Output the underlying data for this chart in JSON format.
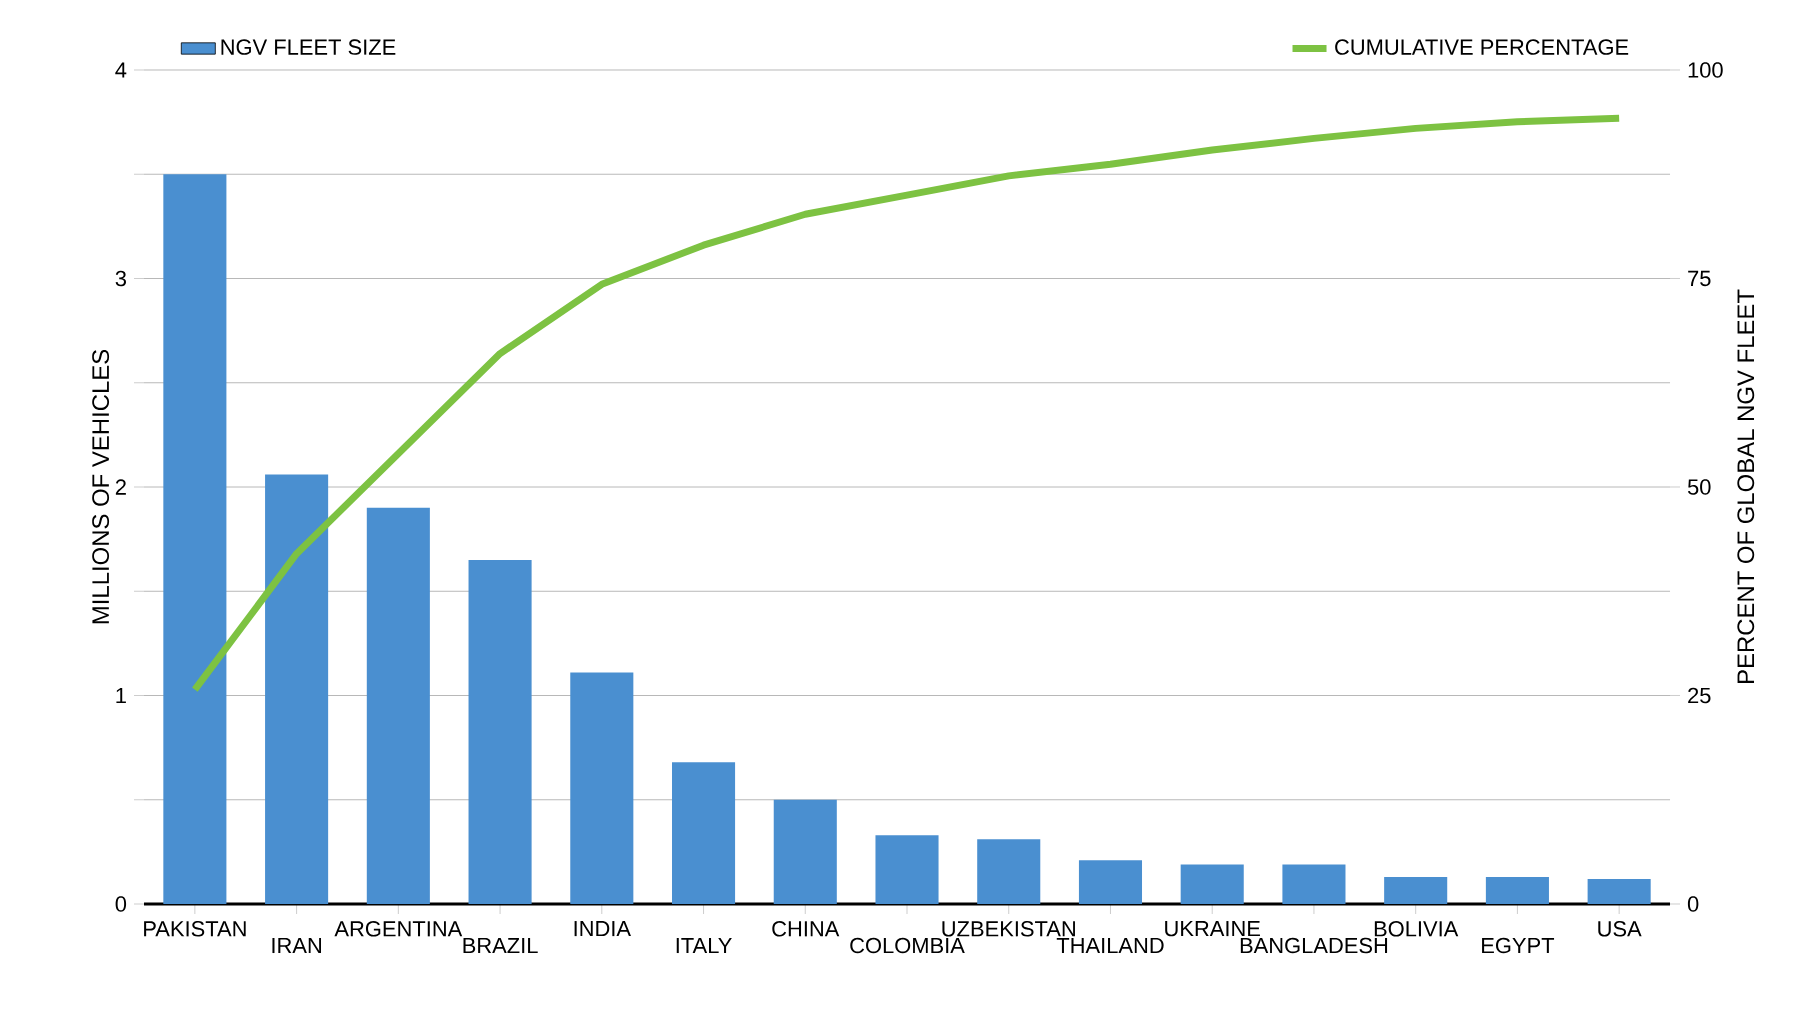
{
  "chart_data": {
    "type": "bar",
    "categories": [
      "PAKISTAN",
      "IRAN",
      "ARGENTINA",
      "BRAZIL",
      "INDIA",
      "ITALY",
      "CHINA",
      "COLOMBIA",
      "UZBEKISTAN",
      "THAILAND",
      "UKRAINE",
      "BANGLADESH",
      "BOLIVIA",
      "EGYPT",
      "USA"
    ],
    "series": [
      {
        "name": "NGV FLEET SIZE",
        "color": "#4a8fd0",
        "values": [
          3.5,
          2.06,
          1.9,
          1.65,
          1.11,
          0.68,
          0.5,
          0.33,
          0.31,
          0.21,
          0.19,
          0.19,
          0.13,
          0.13,
          0.12
        ]
      },
      {
        "name": "CUMULATIVE PERCENTAGE",
        "type": "line",
        "axis": "y2",
        "color": "#7dc242",
        "values": [
          25.7,
          42,
          54,
          66,
          74.3,
          79,
          82.7,
          85,
          87.3,
          88.7,
          90.4,
          91.8,
          93,
          93.8,
          94.2
        ]
      }
    ],
    "ylabel": "MILLIONS OF VEHICLES",
    "y2label": "PERCENT OF GLOBAL NGV FLEET",
    "ylim": [
      0,
      4
    ],
    "yticks": [
      0,
      {
        "value": 0.5,
        "label": null
      },
      1,
      {
        "value": 1.5,
        "label": null
      },
      2,
      {
        "value": 2.5,
        "label": null
      },
      3,
      {
        "value": 3.5,
        "label": null
      },
      4
    ],
    "y2lim": [
      0,
      100
    ],
    "y2ticks": [
      0,
      25,
      50,
      75,
      100
    ],
    "grid": "y",
    "legend": "top"
  }
}
